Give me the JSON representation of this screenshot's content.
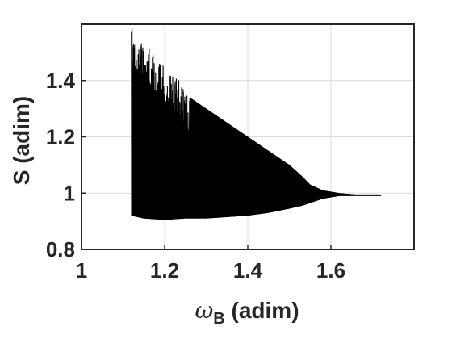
{
  "chart_data": {
    "type": "line",
    "title": "",
    "xlabel_symbol": "ω",
    "xlabel_subscript": "B",
    "xlabel_unit": " (adim)",
    "ylabel": "S (adim)",
    "xlim": [
      1,
      1.8
    ],
    "ylim": [
      0.8,
      1.6
    ],
    "xticks": [
      1,
      1.2,
      1.4,
      1.6
    ],
    "xtick_labels": [
      "1",
      "1.2",
      "1.4",
      "1.6"
    ],
    "yticks": [
      0.8,
      1,
      1.2,
      1.4
    ],
    "ytick_labels": [
      "0.8",
      "1",
      "1.2",
      "1.4"
    ],
    "grid": true,
    "line_color": "#000000",
    "series": [
      {
        "x_start": 1.12,
        "x_end": 1.72,
        "upper_envelope": [
          [
            1.12,
            1.59
          ],
          [
            1.13,
            1.57
          ],
          [
            1.14,
            1.55
          ],
          [
            1.15,
            1.53
          ],
          [
            1.16,
            1.52
          ],
          [
            1.17,
            1.5
          ],
          [
            1.18,
            1.48
          ],
          [
            1.19,
            1.47
          ],
          [
            1.2,
            1.45
          ],
          [
            1.21,
            1.43
          ],
          [
            1.22,
            1.42
          ],
          [
            1.23,
            1.41
          ],
          [
            1.24,
            1.39
          ],
          [
            1.25,
            1.36
          ],
          [
            1.26,
            1.34
          ],
          [
            1.27,
            1.33
          ],
          [
            1.3,
            1.3
          ],
          [
            1.35,
            1.25
          ],
          [
            1.4,
            1.2
          ],
          [
            1.45,
            1.15
          ],
          [
            1.5,
            1.1
          ],
          [
            1.53,
            1.06
          ],
          [
            1.55,
            1.03
          ],
          [
            1.58,
            1.01
          ],
          [
            1.62,
            1.0
          ],
          [
            1.66,
            0.995
          ],
          [
            1.72,
            0.995
          ]
        ],
        "lower_envelope": [
          [
            1.12,
            0.92
          ],
          [
            1.15,
            0.91
          ],
          [
            1.2,
            0.905
          ],
          [
            1.25,
            0.91
          ],
          [
            1.3,
            0.91
          ],
          [
            1.35,
            0.915
          ],
          [
            1.4,
            0.92
          ],
          [
            1.45,
            0.93
          ],
          [
            1.5,
            0.945
          ],
          [
            1.53,
            0.955
          ],
          [
            1.55,
            0.965
          ],
          [
            1.58,
            0.98
          ],
          [
            1.62,
            0.99
          ],
          [
            1.66,
            0.99
          ],
          [
            1.72,
            0.99
          ]
        ]
      }
    ]
  }
}
